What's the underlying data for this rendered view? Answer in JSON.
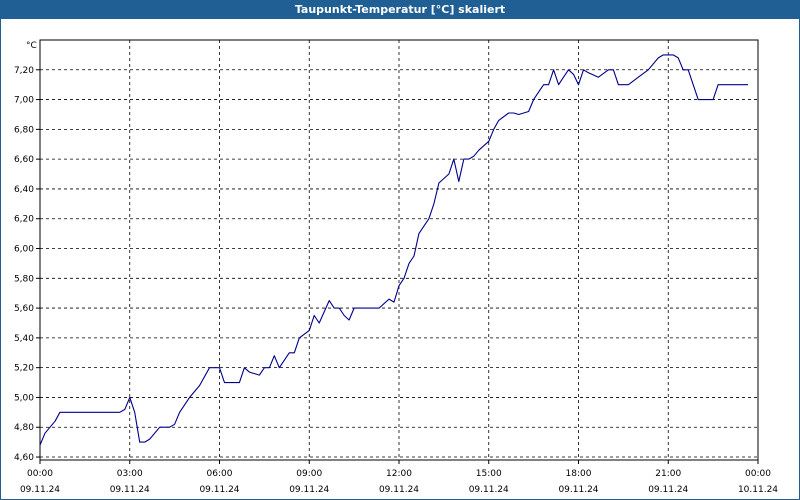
{
  "window": {
    "title": "Taupunkt-Temperatur [°C] skaliert"
  },
  "chart_data": {
    "type": "line",
    "title": "Taupunkt-Temperatur [°C] skaliert",
    "ylabel": "°C",
    "xlabel": "",
    "ylim": [
      4.58,
      7.4
    ],
    "xlim": [
      "09.11.24 00:00",
      "10.11.24 00:00"
    ],
    "yticks": [
      "4,60",
      "4,80",
      "5,00",
      "5,20",
      "5,40",
      "5,60",
      "5,80",
      "6,00",
      "6,20",
      "6,40",
      "6,60",
      "6,80",
      "7,00",
      "7,20"
    ],
    "xticks": [
      {
        "time": "00:00",
        "date": "09.11.24"
      },
      {
        "time": "03:00",
        "date": "09.11.24"
      },
      {
        "time": "06:00",
        "date": "09.11.24"
      },
      {
        "time": "09:00",
        "date": "09.11.24"
      },
      {
        "time": "12:00",
        "date": "09.11.24"
      },
      {
        "time": "15:00",
        "date": "09.11.24"
      },
      {
        "time": "18:00",
        "date": "09.11.24"
      },
      {
        "time": "21:00",
        "date": "09.11.24"
      },
      {
        "time": "00:00",
        "date": "10.11.24"
      }
    ],
    "grid": true,
    "line_color": "#00008b",
    "series": [
      {
        "x": [
          "00:00",
          "00:10",
          "00:20",
          "00:30",
          "00:40",
          "01:00",
          "01:20",
          "01:40",
          "02:00",
          "02:20",
          "02:40",
          "02:50",
          "03:00",
          "03:10",
          "03:20",
          "03:30",
          "03:40",
          "04:00",
          "04:20",
          "04:30",
          "04:40",
          "05:00",
          "05:20",
          "05:40",
          "06:00",
          "06:10",
          "06:20",
          "06:40",
          "06:50",
          "07:00",
          "07:20",
          "07:30",
          "07:40",
          "07:50",
          "08:00",
          "08:20",
          "08:30",
          "08:40",
          "09:00",
          "09:10",
          "09:20",
          "09:40",
          "09:50",
          "10:00",
          "10:10",
          "10:20",
          "10:30",
          "10:40",
          "10:50",
          "11:00",
          "11:20",
          "11:40",
          "11:50",
          "12:00",
          "12:10",
          "12:20",
          "12:30",
          "12:40",
          "13:00",
          "13:10",
          "13:20",
          "13:40",
          "13:50",
          "14:00",
          "14:10",
          "14:20",
          "14:30",
          "14:40",
          "15:00",
          "15:10",
          "15:20",
          "15:40",
          "15:50",
          "16:00",
          "16:10",
          "16:20",
          "16:30",
          "16:40",
          "16:50",
          "17:00",
          "17:10",
          "17:20",
          "17:30",
          "17:40",
          "17:50",
          "18:00",
          "18:10",
          "18:20",
          "18:40",
          "19:00",
          "19:10",
          "19:20",
          "19:40",
          "20:00",
          "20:20",
          "20:40",
          "20:50",
          "21:00",
          "21:10",
          "21:20",
          "21:30",
          "21:40",
          "22:00",
          "22:20",
          "22:30",
          "22:40",
          "23:00",
          "23:20",
          "23:40"
        ],
        "values": [
          4.68,
          4.76,
          4.8,
          4.84,
          4.9,
          4.9,
          4.9,
          4.9,
          4.9,
          4.9,
          4.9,
          4.92,
          5.0,
          4.9,
          4.7,
          4.7,
          4.72,
          4.8,
          4.8,
          4.82,
          4.9,
          5.0,
          5.08,
          5.2,
          5.2,
          5.1,
          5.1,
          5.1,
          5.2,
          5.17,
          5.15,
          5.2,
          5.2,
          5.28,
          5.2,
          5.3,
          5.3,
          5.4,
          5.45,
          5.55,
          5.5,
          5.65,
          5.6,
          5.6,
          5.55,
          5.52,
          5.6,
          5.6,
          5.6,
          5.6,
          5.6,
          5.66,
          5.64,
          5.75,
          5.8,
          5.9,
          5.95,
          6.1,
          6.2,
          6.3,
          6.44,
          6.5,
          6.6,
          6.45,
          6.6,
          6.6,
          6.62,
          6.66,
          6.72,
          6.8,
          6.86,
          6.91,
          6.91,
          6.9,
          6.91,
          6.92,
          7.0,
          7.05,
          7.1,
          7.1,
          7.2,
          7.1,
          7.15,
          7.2,
          7.17,
          7.1,
          7.2,
          7.18,
          7.15,
          7.2,
          7.2,
          7.1,
          7.1,
          7.15,
          7.2,
          7.28,
          7.3,
          7.3,
          7.3,
          7.28,
          7.2,
          7.2,
          7.0,
          7.0,
          7.0,
          7.1,
          7.1,
          7.1,
          7.1
        ]
      }
    ]
  }
}
